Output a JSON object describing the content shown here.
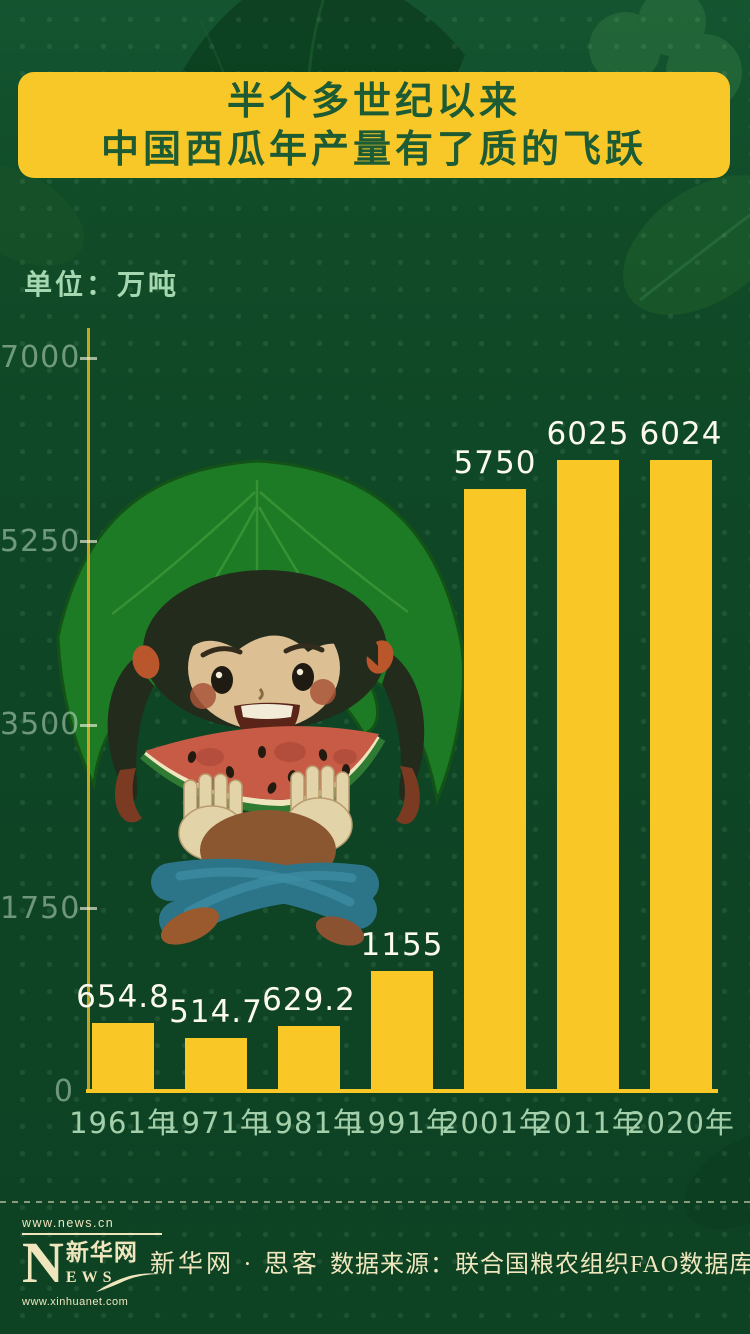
{
  "title": {
    "line1": "半个多世纪以来",
    "line2": "中国西瓜年产量有了质的飞跃"
  },
  "unit_label": "单位：万吨",
  "chart_data": {
    "type": "bar",
    "categories": [
      "1961年",
      "1971年",
      "1981年",
      "1991年",
      "2001年",
      "2011年",
      "2020年"
    ],
    "values": [
      654.8,
      514.7,
      629.2,
      1155,
      5750,
      6025,
      6024
    ],
    "value_labels": [
      "654.8",
      "514.7",
      "629.2",
      "1155",
      "5750",
      "6025",
      "6024"
    ],
    "yticks": [
      "0",
      "1750",
      "3500",
      "5250",
      "7000"
    ],
    "ytick_values": [
      0,
      1750,
      3500,
      5250,
      7000
    ],
    "ylim": [
      0,
      7000
    ],
    "unit": "万吨",
    "title": "半个多世纪以来中国西瓜年产量有了质的飞跃",
    "grid": false,
    "legend": "none",
    "bar_color": "#F9C827"
  },
  "illustration": "girl-in-leaf-hat-eating-watermelon",
  "footer": {
    "logo": {
      "url_top": "www.news.cn",
      "n": "N",
      "cn": "新华网",
      "ews": "EWS",
      "url_bottom": "www.xinhuanet.com"
    },
    "brand": "新华网 · 思客",
    "source": "数据来源：联合国粮农组织FAO数据库"
  },
  "colors": {
    "background": "#0E4525",
    "accent_yellow": "#F9C827",
    "title_text": "#1D5B34",
    "axis_label": "#A3CFAA",
    "value_label": "#FCFAEE",
    "footer_text": "#EFE6BE"
  }
}
